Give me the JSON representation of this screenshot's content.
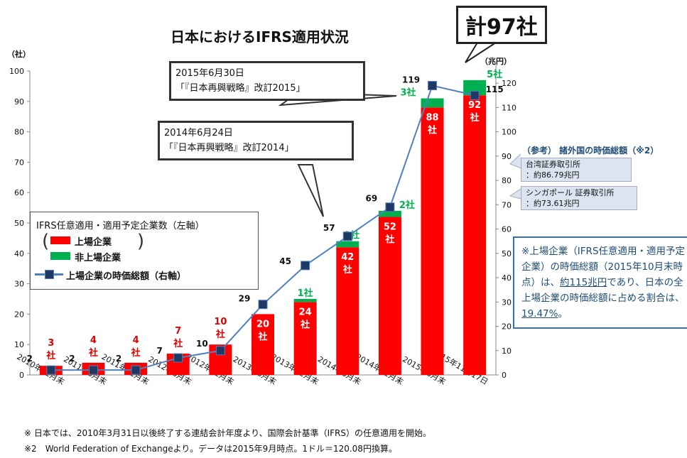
{
  "title": "日本におけるIFRS適用状況",
  "total_badge": "計97社",
  "callouts": [
    {
      "date": "2015年6月30日",
      "text": "「『日本再興戦略』改訂2015」"
    },
    {
      "date": "2014年6月24日",
      "text": "「『日本再興戦略』改訂2014」"
    }
  ],
  "legend": {
    "heading": "IFRS任意適用・適用予定企業数（左軸）",
    "listed": "上場企業",
    "unlisted": "非上場企業",
    "line": "上場企業の時価総額（右軸）"
  },
  "reference": {
    "title": "（参考） 諸外国の時価総額（※2）",
    "items": [
      {
        "name": "台湾証券取引所",
        "value": "：約86.79兆円",
        "y_value": 86.79
      },
      {
        "name": "シンガポール 証券取引所",
        "value": "：約73.61兆円",
        "y_value": 73.61
      }
    ]
  },
  "note": {
    "prefix": "※上場企業（IFRS任意適用・適用予定企業）の時価総額（2015年10月末時点）は、",
    "u1": "約115兆円",
    "middle": "であり、日本の全上場企業の時価総額に占める割合は、",
    "u2": "19.47%",
    "suffix": "。"
  },
  "footnotes": [
    "※ 日本では、2010年3月31日以後終了する連結会計年度より、国際会計基準（IFRS）の任意適用を開始。",
    "※2　World Federation of Exchangeより。データは2015年9月時点。1ドル＝120.08円換算。"
  ],
  "chart_data": {
    "type": "bar",
    "categories": [
      "2010年12月末",
      "2011年6月末",
      "2011年12月末",
      "2012年6月末",
      "2012年12月末",
      "2013年6月末",
      "2013年12月末",
      "2014年6月末",
      "2014年12月末",
      "2015年6月末",
      "2015年11月17日"
    ],
    "series": [
      {
        "name": "上場企業",
        "color": "#ff0000",
        "values": [
          3,
          4,
          4,
          7,
          10,
          20,
          24,
          42,
          52,
          88,
          92
        ],
        "labels": [
          "3社",
          "4社",
          "4社",
          "7社",
          "10社",
          "20社",
          "24社",
          "42社",
          "52社",
          "88社",
          "92社"
        ]
      },
      {
        "name": "非上場企業",
        "color": "#00b050",
        "values": [
          0,
          0,
          0,
          0,
          0,
          0,
          1,
          2,
          2,
          3,
          5
        ],
        "labels": [
          "",
          "",
          "",
          "",
          "",
          "",
          "1社",
          "2社",
          "2社",
          "3社",
          "5社"
        ]
      },
      {
        "name": "上場企業の時価総額",
        "type": "line",
        "axis": "right",
        "color": "#4f81bd",
        "values": [
          2,
          2,
          2,
          7,
          10,
          29,
          45,
          57,
          69,
          119,
          115
        ]
      }
    ],
    "ylabel_left": "（社）",
    "ylabel_right": "（兆円）",
    "ylim_left": [
      0,
      100
    ],
    "ylim_right": [
      0,
      125
    ],
    "yticks_left": [
      0,
      10,
      20,
      30,
      40,
      50,
      60,
      70,
      80,
      90,
      100
    ],
    "yticks_right": [
      0,
      10,
      20,
      30,
      40,
      50,
      60,
      70,
      80,
      90,
      100,
      110,
      120
    ],
    "grid": false
  }
}
